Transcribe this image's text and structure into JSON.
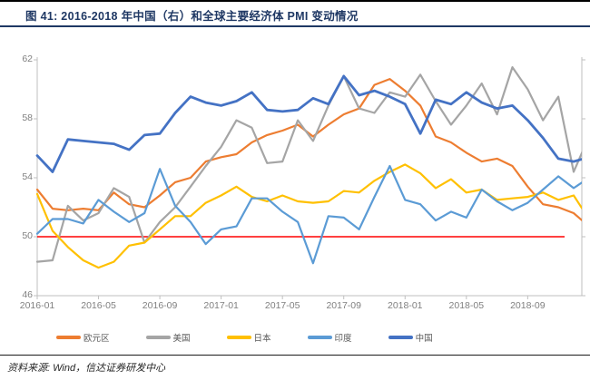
{
  "title": "图 41: 2016-2018 年中国（右）和全球主要经济体 PMI 变动情况",
  "footer": {
    "source_label": "资料来源: Wind，信达证券研发中心"
  },
  "legend": {
    "items": [
      {
        "label": "欧元区",
        "color": "#ED7D31"
      },
      {
        "label": "美国",
        "color": "#A5A5A5"
      },
      {
        "label": "日本",
        "color": "#FFC000"
      },
      {
        "label": "印度",
        "color": "#5B9BD5"
      },
      {
        "label": "中国",
        "color": "#4472C4"
      }
    ]
  },
  "chart_data": {
    "type": "line",
    "title": "2016-2018 年中国（右）和全球主要经济体 PMI 变动情况",
    "xlabel": "",
    "ylabel": "",
    "ylim_left": [
      46,
      62
    ],
    "y_ticks_left": [
      46,
      50,
      54,
      58,
      62
    ],
    "y_tick_labels_desc": [
      "62",
      "58",
      "54",
      "50",
      "46"
    ],
    "grid": false,
    "legend_position": "bottom",
    "right_axis_note": "中国 series is plotted on the right axis; right-axis tick labels are not visible in the image, values below are as read against the left axis",
    "reference_line": {
      "value": 50,
      "color": "#FF0000"
    },
    "x_tick_labels": [
      "2016-01",
      "2016-05",
      "2016-09",
      "2017-01",
      "2017-05",
      "2017-09",
      "2018-01",
      "2018-05",
      "2018-09"
    ],
    "x_tick_month_indices": [
      0,
      4,
      8,
      12,
      16,
      20,
      24,
      28,
      32
    ],
    "months": [
      "2016-01",
      "2016-02",
      "2016-03",
      "2016-04",
      "2016-05",
      "2016-06",
      "2016-07",
      "2016-08",
      "2016-09",
      "2016-10",
      "2016-11",
      "2016-12",
      "2017-01",
      "2017-02",
      "2017-03",
      "2017-04",
      "2017-05",
      "2017-06",
      "2017-07",
      "2017-08",
      "2017-09",
      "2017-10",
      "2017-11",
      "2017-12",
      "2018-01",
      "2018-02",
      "2018-03",
      "2018-04",
      "2018-05",
      "2018-06",
      "2018-07",
      "2018-08",
      "2018-09",
      "2018-10",
      "2018-11",
      "2018-12",
      "2019-01"
    ],
    "series": [
      {
        "name": "欧元区",
        "color": "#ED7D31",
        "axis": "left",
        "width": 2.2,
        "values": [
          53.2,
          51.9,
          51.8,
          51.9,
          51.8,
          53.0,
          52.2,
          52.0,
          52.8,
          53.7,
          54.0,
          55.1,
          55.4,
          55.6,
          56.4,
          56.9,
          57.2,
          57.6,
          56.8,
          57.6,
          58.3,
          58.7,
          60.3,
          60.7,
          59.9,
          58.9,
          56.8,
          56.4,
          55.7,
          55.1,
          55.3,
          54.8,
          53.4,
          52.2,
          52.0,
          51.6,
          50.7
        ]
      },
      {
        "name": "美国",
        "color": "#A5A5A5",
        "axis": "left",
        "width": 2.2,
        "values": [
          48.3,
          48.4,
          52.1,
          51.1,
          51.6,
          53.3,
          52.7,
          49.6,
          51.0,
          52.0,
          53.4,
          54.8,
          56.1,
          57.9,
          57.4,
          55.0,
          55.1,
          57.9,
          56.5,
          58.9,
          60.9,
          58.7,
          58.4,
          59.8,
          59.5,
          61.0,
          59.2,
          57.6,
          58.9,
          60.4,
          58.3,
          61.5,
          60.0,
          57.9,
          59.5,
          54.4,
          56.8
        ]
      },
      {
        "name": "日本",
        "color": "#FFC000",
        "axis": "left",
        "width": 2.2,
        "values": [
          52.9,
          50.4,
          49.3,
          48.4,
          47.9,
          48.3,
          49.4,
          49.6,
          50.5,
          51.4,
          51.4,
          52.3,
          52.8,
          53.4,
          52.7,
          52.4,
          52.8,
          52.4,
          52.3,
          52.4,
          53.1,
          53.0,
          53.8,
          54.4,
          54.9,
          54.3,
          53.3,
          53.9,
          53.0,
          53.2,
          52.5,
          52.6,
          52.7,
          53.0,
          52.5,
          52.8,
          51.2
        ]
      },
      {
        "name": "印度",
        "color": "#5B9BD5",
        "axis": "left",
        "width": 2.2,
        "values": [
          50.2,
          51.2,
          51.2,
          50.9,
          52.5,
          51.7,
          51.0,
          51.6,
          54.6,
          52.1,
          51.0,
          49.5,
          50.5,
          50.7,
          52.6,
          52.6,
          51.7,
          51.0,
          48.2,
          51.4,
          51.3,
          50.5,
          52.7,
          54.8,
          52.5,
          52.2,
          51.1,
          51.7,
          51.3,
          53.2,
          52.4,
          51.8,
          52.3,
          53.2,
          54.1,
          53.3,
          54.0
        ]
      },
      {
        "name": "中国",
        "color": "#4472C4",
        "axis": "right",
        "width": 2.8,
        "values": [
          55.5,
          54.4,
          56.6,
          56.5,
          56.4,
          56.3,
          55.9,
          56.9,
          57.0,
          58.4,
          59.5,
          59.1,
          58.9,
          59.2,
          59.8,
          58.6,
          58.5,
          58.6,
          59.4,
          59.0,
          60.9,
          59.6,
          59.9,
          59.5,
          59.0,
          57.0,
          59.3,
          59.0,
          59.8,
          59.1,
          58.7,
          58.9,
          57.9,
          56.7,
          55.3,
          55.1,
          55.4
        ]
      }
    ]
  }
}
